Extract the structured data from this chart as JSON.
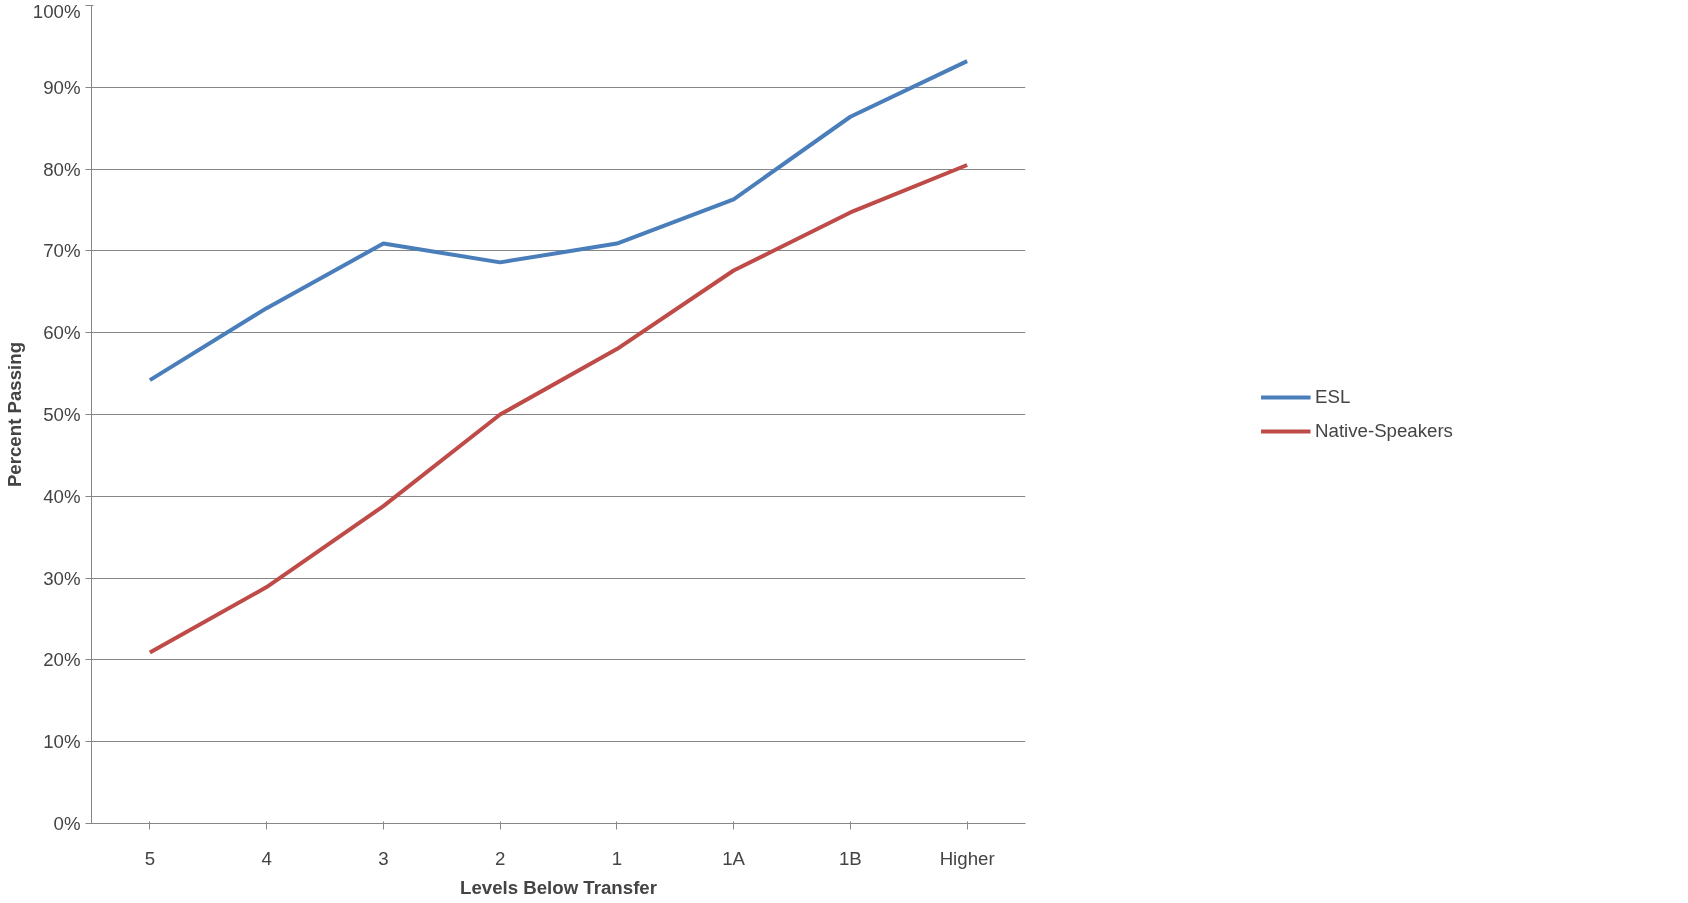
{
  "chart_data": {
    "type": "line",
    "xlabel": "Levels Below Transfer",
    "ylabel": "Percent Passing",
    "categories": [
      "5",
      "4",
      "3",
      "2",
      "1",
      "1A",
      "1B",
      "Higher"
    ],
    "series": [
      {
        "name": "ESL",
        "color": "#4a7ebb",
        "values": [
          54.2,
          63.0,
          70.9,
          68.6,
          70.9,
          76.3,
          86.4,
          93.2
        ]
      },
      {
        "name": "Native-Speakers",
        "color": "#be4b48",
        "values": [
          20.9,
          28.9,
          38.8,
          50.0,
          58.0,
          67.6,
          74.7,
          80.5
        ]
      }
    ],
    "ylim": [
      0,
      100
    ],
    "yticks": [
      {
        "value": 0,
        "label": "0%"
      },
      {
        "value": 10,
        "label": "10%"
      },
      {
        "value": 20,
        "label": "20%"
      },
      {
        "value": 30,
        "label": "30%"
      },
      {
        "value": 40,
        "label": "40%"
      },
      {
        "value": 50,
        "label": "50%"
      },
      {
        "value": 60,
        "label": "60%"
      },
      {
        "value": 70,
        "label": "70%"
      },
      {
        "value": 80,
        "label": "80%"
      },
      {
        "value": 90,
        "label": "90%"
      },
      {
        "value": 100,
        "label": "100%"
      }
    ],
    "grid": "y",
    "legend": "right",
    "marker": "none",
    "line_style": "solid"
  }
}
